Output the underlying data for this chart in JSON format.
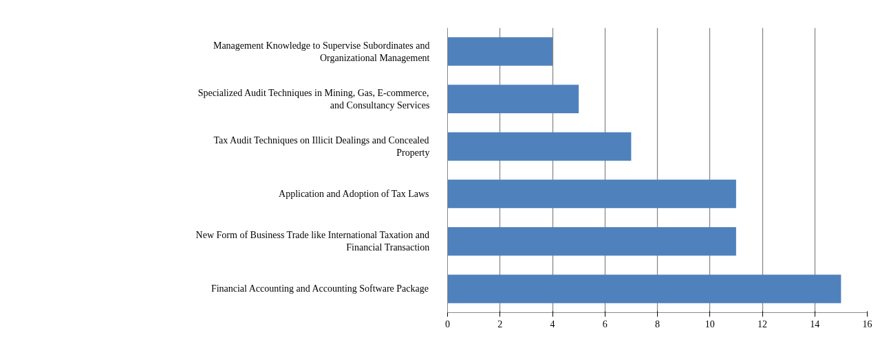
{
  "chart_data": {
    "type": "bar",
    "orientation": "horizontal",
    "categories": [
      "Management Knowledge to Supervise Subordinates and Organizational Management",
      "Specialized Audit Techniques in Mining, Gas, E-commerce, and Consultancy Services",
      "Tax Audit Techniques on Illicit Dealings and Concealed Property",
      "Application and Adoption of Tax Laws",
      "New Form of Business Trade like International Taxation and Financial Transaction",
      "Financial Accounting and Accounting Software Package"
    ],
    "values": [
      4,
      5,
      7,
      11,
      11,
      15
    ],
    "color": "#4f81bd",
    "xlim": [
      0,
      16
    ],
    "xticks": [
      0,
      2,
      4,
      6,
      8,
      10,
      12,
      14,
      16
    ],
    "grid": "x"
  }
}
